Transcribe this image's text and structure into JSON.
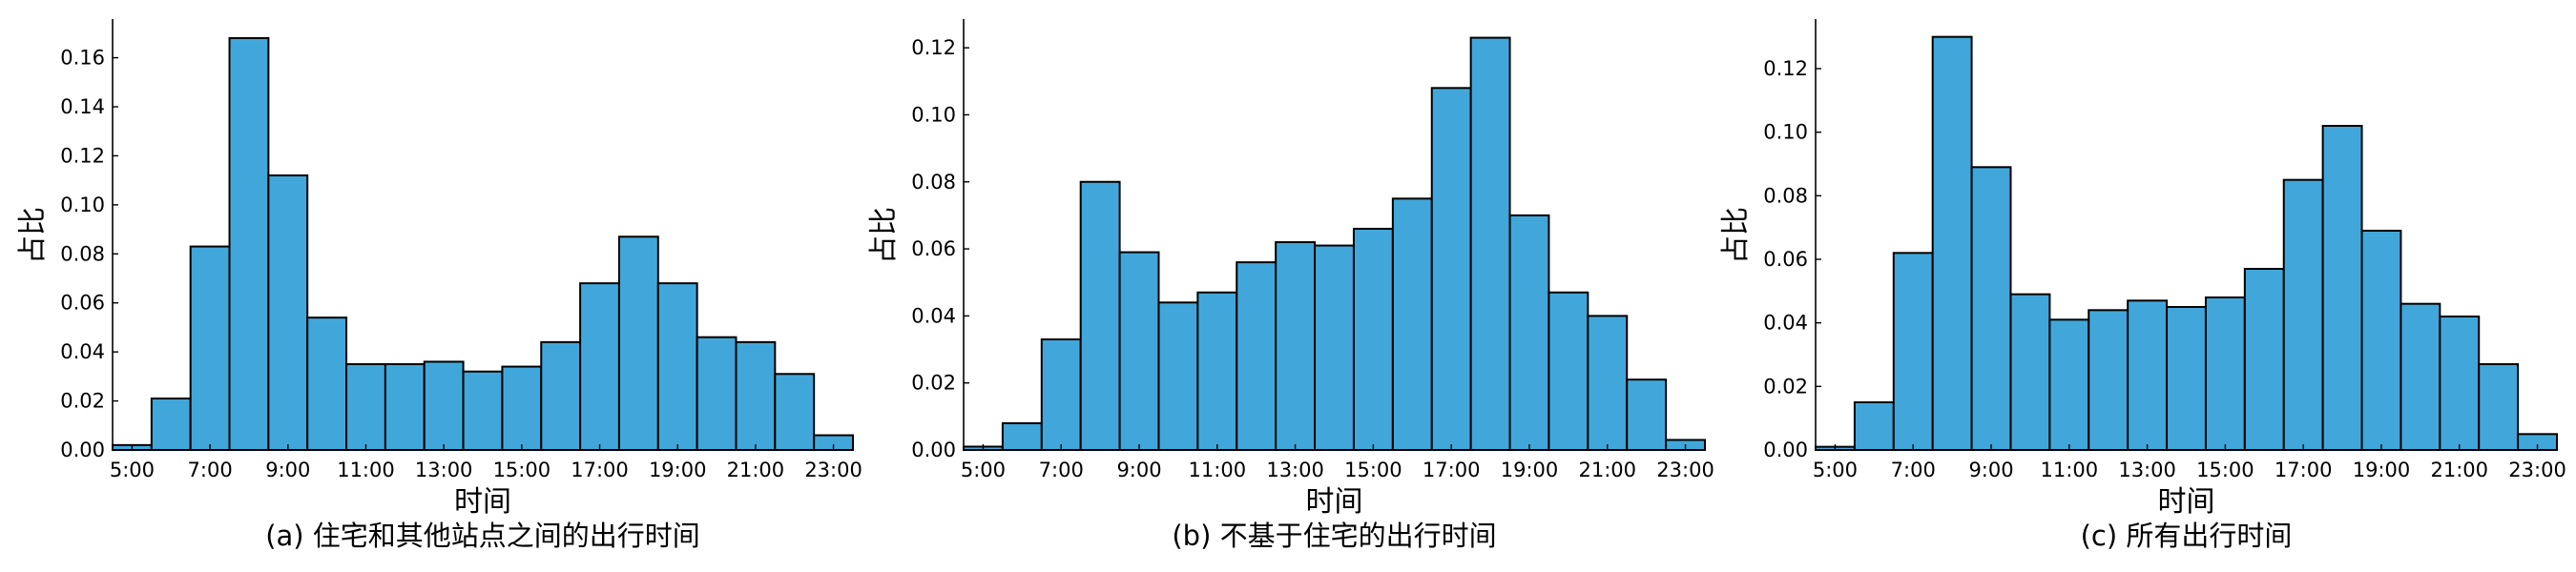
{
  "bar_color": "#41A7DA",
  "edge_color": "#000000",
  "chart_data": [
    {
      "type": "bar",
      "title": "(a) 住宅和其他站点之间的出行时间",
      "xlabel": "时间",
      "ylabel": "占比",
      "bins": [
        5,
        6,
        7,
        8,
        9,
        10,
        11,
        12,
        13,
        14,
        15,
        16,
        17,
        18,
        19,
        20,
        21,
        22,
        23
      ],
      "values": [
        0.002,
        0.021,
        0.083,
        0.168,
        0.112,
        0.054,
        0.035,
        0.035,
        0.036,
        0.032,
        0.034,
        0.044,
        0.068,
        0.087,
        0.068,
        0.046,
        0.044,
        0.031,
        0.006
      ],
      "xticks": [
        "5:00",
        "7:00",
        "9:00",
        "11:00",
        "13:00",
        "15:00",
        "17:00",
        "19:00",
        "21:00",
        "23:00"
      ],
      "yticks": [
        "0.00",
        "0.02",
        "0.04",
        "0.06",
        "0.08",
        "0.10",
        "0.12",
        "0.14",
        "0.16"
      ],
      "ylim": [
        0,
        0.175
      ],
      "xlim": [
        5,
        24
      ]
    },
    {
      "type": "bar",
      "title": "(b) 不基于住宅的出行时间",
      "xlabel": "时间",
      "ylabel": "占比",
      "bins": [
        5,
        6,
        7,
        8,
        9,
        10,
        11,
        12,
        13,
        14,
        15,
        16,
        17,
        18,
        19,
        20,
        21,
        22,
        23
      ],
      "values": [
        0.001,
        0.008,
        0.033,
        0.08,
        0.059,
        0.044,
        0.047,
        0.056,
        0.062,
        0.061,
        0.066,
        0.075,
        0.108,
        0.123,
        0.07,
        0.047,
        0.04,
        0.021,
        0.003
      ],
      "xticks": [
        "5:00",
        "7:00",
        "9:00",
        "11:00",
        "13:00",
        "15:00",
        "17:00",
        "19:00",
        "21:00",
        "23:00"
      ],
      "yticks": [
        "0.00",
        "0.02",
        "0.04",
        "0.06",
        "0.08",
        "0.10",
        "0.12"
      ],
      "ylim": [
        0,
        0.128
      ],
      "xlim": [
        5,
        24
      ]
    },
    {
      "type": "bar",
      "title": "(c) 所有出行时间",
      "xlabel": "时间",
      "ylabel": "占比",
      "bins": [
        5,
        6,
        7,
        8,
        9,
        10,
        11,
        12,
        13,
        14,
        15,
        16,
        17,
        18,
        19,
        20,
        21,
        22,
        23
      ],
      "values": [
        0.001,
        0.015,
        0.062,
        0.13,
        0.089,
        0.049,
        0.041,
        0.044,
        0.047,
        0.045,
        0.048,
        0.057,
        0.085,
        0.102,
        0.069,
        0.046,
        0.042,
        0.027,
        0.005
      ],
      "xticks": [
        "5:00",
        "7:00",
        "9:00",
        "11:00",
        "13:00",
        "15:00",
        "17:00",
        "19:00",
        "21:00",
        "23:00"
      ],
      "yticks": [
        "0.00",
        "0.02",
        "0.04",
        "0.06",
        "0.08",
        "0.10",
        "0.12"
      ],
      "ylim": [
        0,
        0.135
      ],
      "xlim": [
        5,
        24
      ]
    }
  ]
}
